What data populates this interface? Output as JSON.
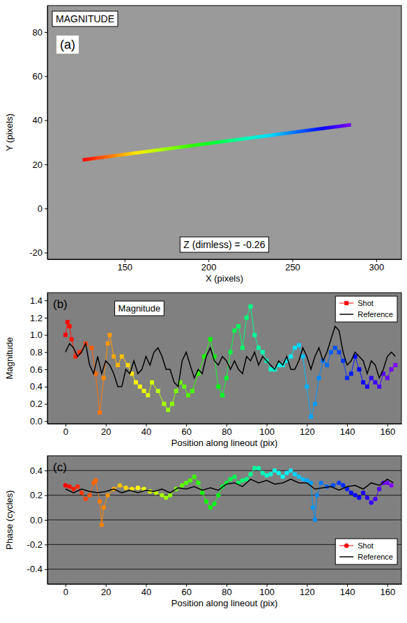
{
  "chart_data": [
    {
      "type": "image",
      "title": "MAGNITUDE",
      "panel_label": "(a)",
      "annotation": "Z (dimless) = -0.26",
      "x_label": "X (pixels)",
      "y_label": "Y (pixels)",
      "xlim": [
        104,
        315
      ],
      "ylim": [
        -23,
        92
      ],
      "xticks": [
        150,
        200,
        250,
        300
      ],
      "yticks": [
        -20,
        0,
        20,
        40,
        60,
        80
      ],
      "series": [
        {
          "x": [
            125,
            285
          ],
          "values": [
            22,
            38
          ],
          "color": "rainbow",
          "line_style": "solid"
        }
      ]
    },
    {
      "type": "line",
      "title": "Magnitude",
      "panel_label": "(b)",
      "x_label": "Position along lineout (pix)",
      "y_label": "Magnitude",
      "xlim": [
        -9,
        167
      ],
      "ylim": [
        -0.03,
        1.49
      ],
      "xticks": [
        0,
        20,
        40,
        60,
        80,
        100,
        120,
        140,
        160
      ],
      "yticks": [
        {
          "value": 0,
          "label": "0.0"
        },
        0.2,
        0.4,
        0.6,
        0.8,
        {
          "value": 1,
          "label": "1.0"
        },
        1.2,
        1.4
      ],
      "legend": "upper right",
      "series": [
        {
          "name": "Shot",
          "color": "rainbow",
          "marker": "square",
          "line_style": "solid",
          "x": [
            0,
            1,
            2,
            3,
            5,
            7,
            10,
            13,
            15,
            17,
            19,
            21,
            22,
            24,
            26,
            28,
            31,
            33,
            35,
            37,
            39,
            41,
            43,
            46,
            49,
            51,
            53,
            55,
            57,
            59,
            61,
            63,
            66,
            69,
            72,
            74,
            76,
            78,
            80,
            82,
            84,
            86,
            88,
            90,
            92,
            94,
            96,
            98,
            100,
            102,
            104,
            106,
            108,
            110,
            112,
            114,
            116,
            118,
            120,
            122,
            124,
            126,
            128,
            130,
            132,
            134,
            136,
            138,
            140,
            142,
            144,
            146,
            148,
            150,
            152,
            154,
            156,
            158,
            160,
            162,
            164
          ],
          "values": [
            1.0,
            1.15,
            1.1,
            0.95,
            0.75,
            0.8,
            0.9,
            0.85,
            0.55,
            0.1,
            0.5,
            0.9,
            1.0,
            0.75,
            0.65,
            0.75,
            0.65,
            0.55,
            0.45,
            0.4,
            0.35,
            0.3,
            0.45,
            0.35,
            0.2,
            0.13,
            0.2,
            0.35,
            0.45,
            0.4,
            0.3,
            0.35,
            0.55,
            0.75,
            0.95,
            0.75,
            0.4,
            0.3,
            0.5,
            0.8,
            1.05,
            1.1,
            0.85,
            1.2,
            1.33,
            1.0,
            0.85,
            0.8,
            0.7,
            0.6,
            0.6,
            0.65,
            0.65,
            0.7,
            0.75,
            0.85,
            0.88,
            0.75,
            0.4,
            0.05,
            0.2,
            0.5,
            0.7,
            0.65,
            0.8,
            0.85,
            0.8,
            0.7,
            0.5,
            0.55,
            0.75,
            0.6,
            0.45,
            0.4,
            0.5,
            0.45,
            0.4,
            0.55,
            0.5,
            0.6,
            0.65
          ]
        },
        {
          "name": "Reference",
          "color": "#000000",
          "line_style": "solid",
          "x": [
            0,
            2,
            4,
            6,
            8,
            10,
            12,
            14,
            16,
            18,
            20,
            22,
            24,
            26,
            28,
            30,
            32,
            34,
            36,
            38,
            40,
            42,
            44,
            46,
            48,
            50,
            52,
            54,
            56,
            58,
            60,
            62,
            64,
            66,
            68,
            70,
            72,
            74,
            76,
            78,
            80,
            82,
            84,
            86,
            88,
            90,
            92,
            94,
            96,
            98,
            100,
            102,
            104,
            106,
            108,
            110,
            112,
            114,
            116,
            118,
            120,
            122,
            124,
            126,
            128,
            130,
            132,
            134,
            136,
            138,
            140,
            142,
            144,
            146,
            148,
            150,
            152,
            154,
            156,
            158,
            160,
            162,
            164
          ],
          "values": [
            0.8,
            0.9,
            0.85,
            0.75,
            0.8,
            0.9,
            0.65,
            0.55,
            0.75,
            0.55,
            0.7,
            0.65,
            0.55,
            0.4,
            0.4,
            0.6,
            0.55,
            0.7,
            0.55,
            0.6,
            0.75,
            0.65,
            0.8,
            0.85,
            0.75,
            0.6,
            0.6,
            0.45,
            0.4,
            0.7,
            0.8,
            0.65,
            0.5,
            0.6,
            0.55,
            0.75,
            0.85,
            0.7,
            0.65,
            0.75,
            0.7,
            0.6,
            0.7,
            0.6,
            0.55,
            0.75,
            0.7,
            0.8,
            0.65,
            0.75,
            0.7,
            0.65,
            0.6,
            0.7,
            0.65,
            0.75,
            0.6,
            0.6,
            0.7,
            0.85,
            0.75,
            0.6,
            0.75,
            0.85,
            0.7,
            0.8,
            0.95,
            1.1,
            1.05,
            0.8,
            0.65,
            0.7,
            0.8,
            0.75,
            0.7,
            0.55,
            0.7,
            0.65,
            0.5,
            0.6,
            0.75,
            0.8,
            0.75
          ]
        }
      ]
    },
    {
      "type": "line",
      "panel_label": "(c)",
      "x_label": "Position along lineout (pix)",
      "y_label": "Phase (cycles)",
      "xlim": [
        -9,
        167
      ],
      "ylim": [
        -0.52,
        0.52
      ],
      "xticks": [
        0,
        20,
        40,
        60,
        80,
        100,
        120,
        140,
        160
      ],
      "yticks": [
        -0.4,
        -0.2,
        {
          "value": 0,
          "label": "0.0"
        },
        0.2,
        0.4
      ],
      "grid": true,
      "legend": "lower right",
      "series": [
        {
          "name": "Shot",
          "color": "rainbow",
          "marker": "circle",
          "line_style": "solid",
          "x": [
            0,
            2,
            4,
            6,
            8,
            10,
            12,
            14,
            15,
            17,
            18,
            19,
            21,
            24,
            27,
            30,
            33,
            36,
            39,
            42,
            45,
            48,
            50,
            52,
            55,
            58,
            60,
            62,
            64,
            66,
            68,
            70,
            72,
            74,
            76,
            78,
            80,
            82,
            84,
            86,
            88,
            90,
            92,
            94,
            96,
            98,
            100,
            102,
            104,
            106,
            108,
            110,
            112,
            114,
            116,
            118,
            120,
            122,
            123,
            124,
            125,
            127,
            130,
            133,
            136,
            138,
            140,
            142,
            144,
            146,
            148,
            150,
            152,
            154,
            156,
            158,
            160,
            162
          ],
          "values": [
            0.28,
            0.27,
            0.25,
            0.27,
            0.22,
            0.17,
            0.2,
            0.3,
            0.32,
            0.15,
            -0.04,
            0.1,
            0.2,
            0.25,
            0.28,
            0.26,
            0.25,
            0.26,
            0.25,
            0.23,
            0.22,
            0.2,
            0.18,
            0.2,
            0.25,
            0.28,
            0.3,
            0.32,
            0.35,
            0.3,
            0.22,
            0.15,
            0.1,
            0.13,
            0.2,
            0.27,
            0.3,
            0.33,
            0.35,
            0.3,
            0.32,
            0.33,
            0.37,
            0.42,
            0.42,
            0.38,
            0.36,
            0.37,
            0.4,
            0.38,
            0.35,
            0.38,
            0.4,
            0.37,
            0.35,
            0.33,
            0.32,
            0.3,
            0.1,
            0.0,
            0.2,
            0.3,
            0.27,
            0.28,
            0.3,
            0.28,
            0.25,
            0.22,
            0.2,
            0.18,
            0.22,
            0.18,
            0.14,
            0.17,
            0.25,
            0.3,
            0.3,
            0.28
          ]
        },
        {
          "name": "Reference",
          "color": "#000000",
          "line_style": "solid",
          "x": [
            0,
            4,
            8,
            12,
            16,
            20,
            24,
            28,
            32,
            36,
            40,
            44,
            48,
            52,
            56,
            60,
            64,
            68,
            72,
            76,
            80,
            84,
            88,
            92,
            96,
            100,
            104,
            108,
            112,
            116,
            120,
            124,
            128,
            132,
            136,
            140,
            144,
            148,
            152,
            156,
            160,
            163
          ],
          "values": [
            0.25,
            0.22,
            0.25,
            0.23,
            0.22,
            0.23,
            0.25,
            0.22,
            0.24,
            0.22,
            0.24,
            0.23,
            0.25,
            0.22,
            0.26,
            0.25,
            0.27,
            0.24,
            0.26,
            0.24,
            0.29,
            0.3,
            0.27,
            0.33,
            0.3,
            0.32,
            0.29,
            0.3,
            0.33,
            0.3,
            0.3,
            0.25,
            0.26,
            0.27,
            0.24,
            0.27,
            0.28,
            0.25,
            0.3,
            0.28,
            0.33,
            0.3
          ]
        }
      ]
    }
  ]
}
